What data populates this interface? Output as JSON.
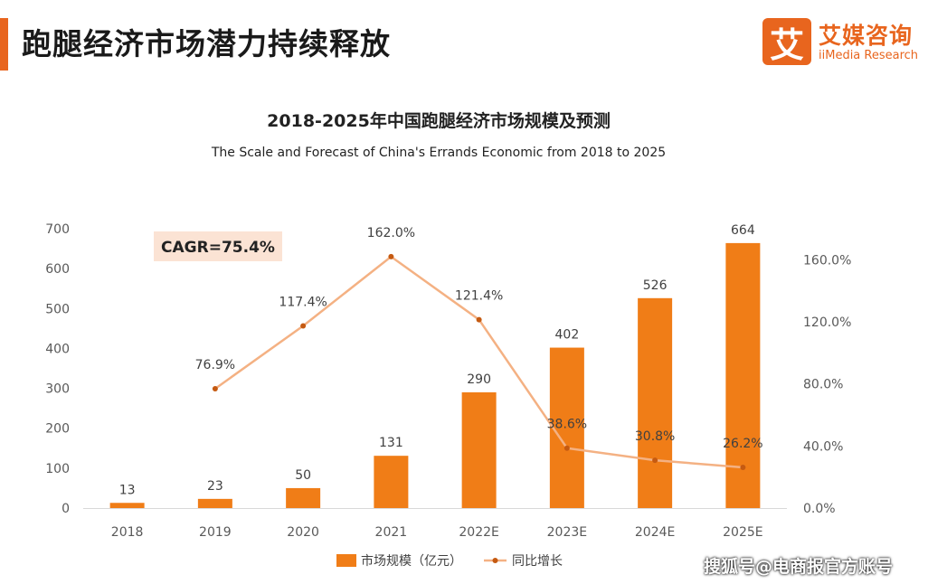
{
  "header": {
    "title": "跑腿经济市场潜力持续释放",
    "accent_color": "#e8651e"
  },
  "logo": {
    "mark": "艾",
    "name": "艾媒咨询",
    "sub": "iiMedia Research"
  },
  "watermark": "搜狐号@电商报官方账号",
  "chart_data": {
    "type": "bar",
    "title": "2018-2025年中国跑腿经济市场规模及预测",
    "subtitle": "The Scale and Forecast of China's Errands Economic from 2018 to 2025",
    "categories": [
      "2018",
      "2019",
      "2020",
      "2021",
      "2022E",
      "2023E",
      "2024E",
      "2025E"
    ],
    "series": [
      {
        "name": "市场规模（亿元）",
        "type": "bar",
        "axis": "left",
        "color": "#f07d17",
        "values": [
          13,
          23,
          50,
          131,
          290,
          402,
          526,
          664
        ],
        "labels": [
          "13",
          "23",
          "50",
          "131",
          "290",
          "402",
          "526",
          "664"
        ]
      },
      {
        "name": "同比增长",
        "type": "line",
        "axis": "right",
        "color": "#f4b183",
        "values": [
          null,
          76.9,
          117.4,
          162.0,
          121.4,
          38.6,
          30.8,
          26.2
        ],
        "labels": [
          null,
          "76.9%",
          "117.4%",
          "162.0%",
          "121.4%",
          "38.6%",
          "30.8%",
          "26.2%"
        ]
      }
    ],
    "y_left": {
      "min": 0,
      "max": 700,
      "ticks": [
        "0",
        "100",
        "200",
        "300",
        "400",
        "500",
        "600",
        "700"
      ]
    },
    "y_right": {
      "min": 0,
      "max": 180,
      "ticks": [
        "0.0%",
        "40.0%",
        "80.0%",
        "120.0%",
        "160.0%"
      ]
    },
    "annotation": {
      "text": "CAGR=75.4%",
      "background": "#fbe3d4"
    },
    "grid": false,
    "legend_position": "bottom"
  }
}
